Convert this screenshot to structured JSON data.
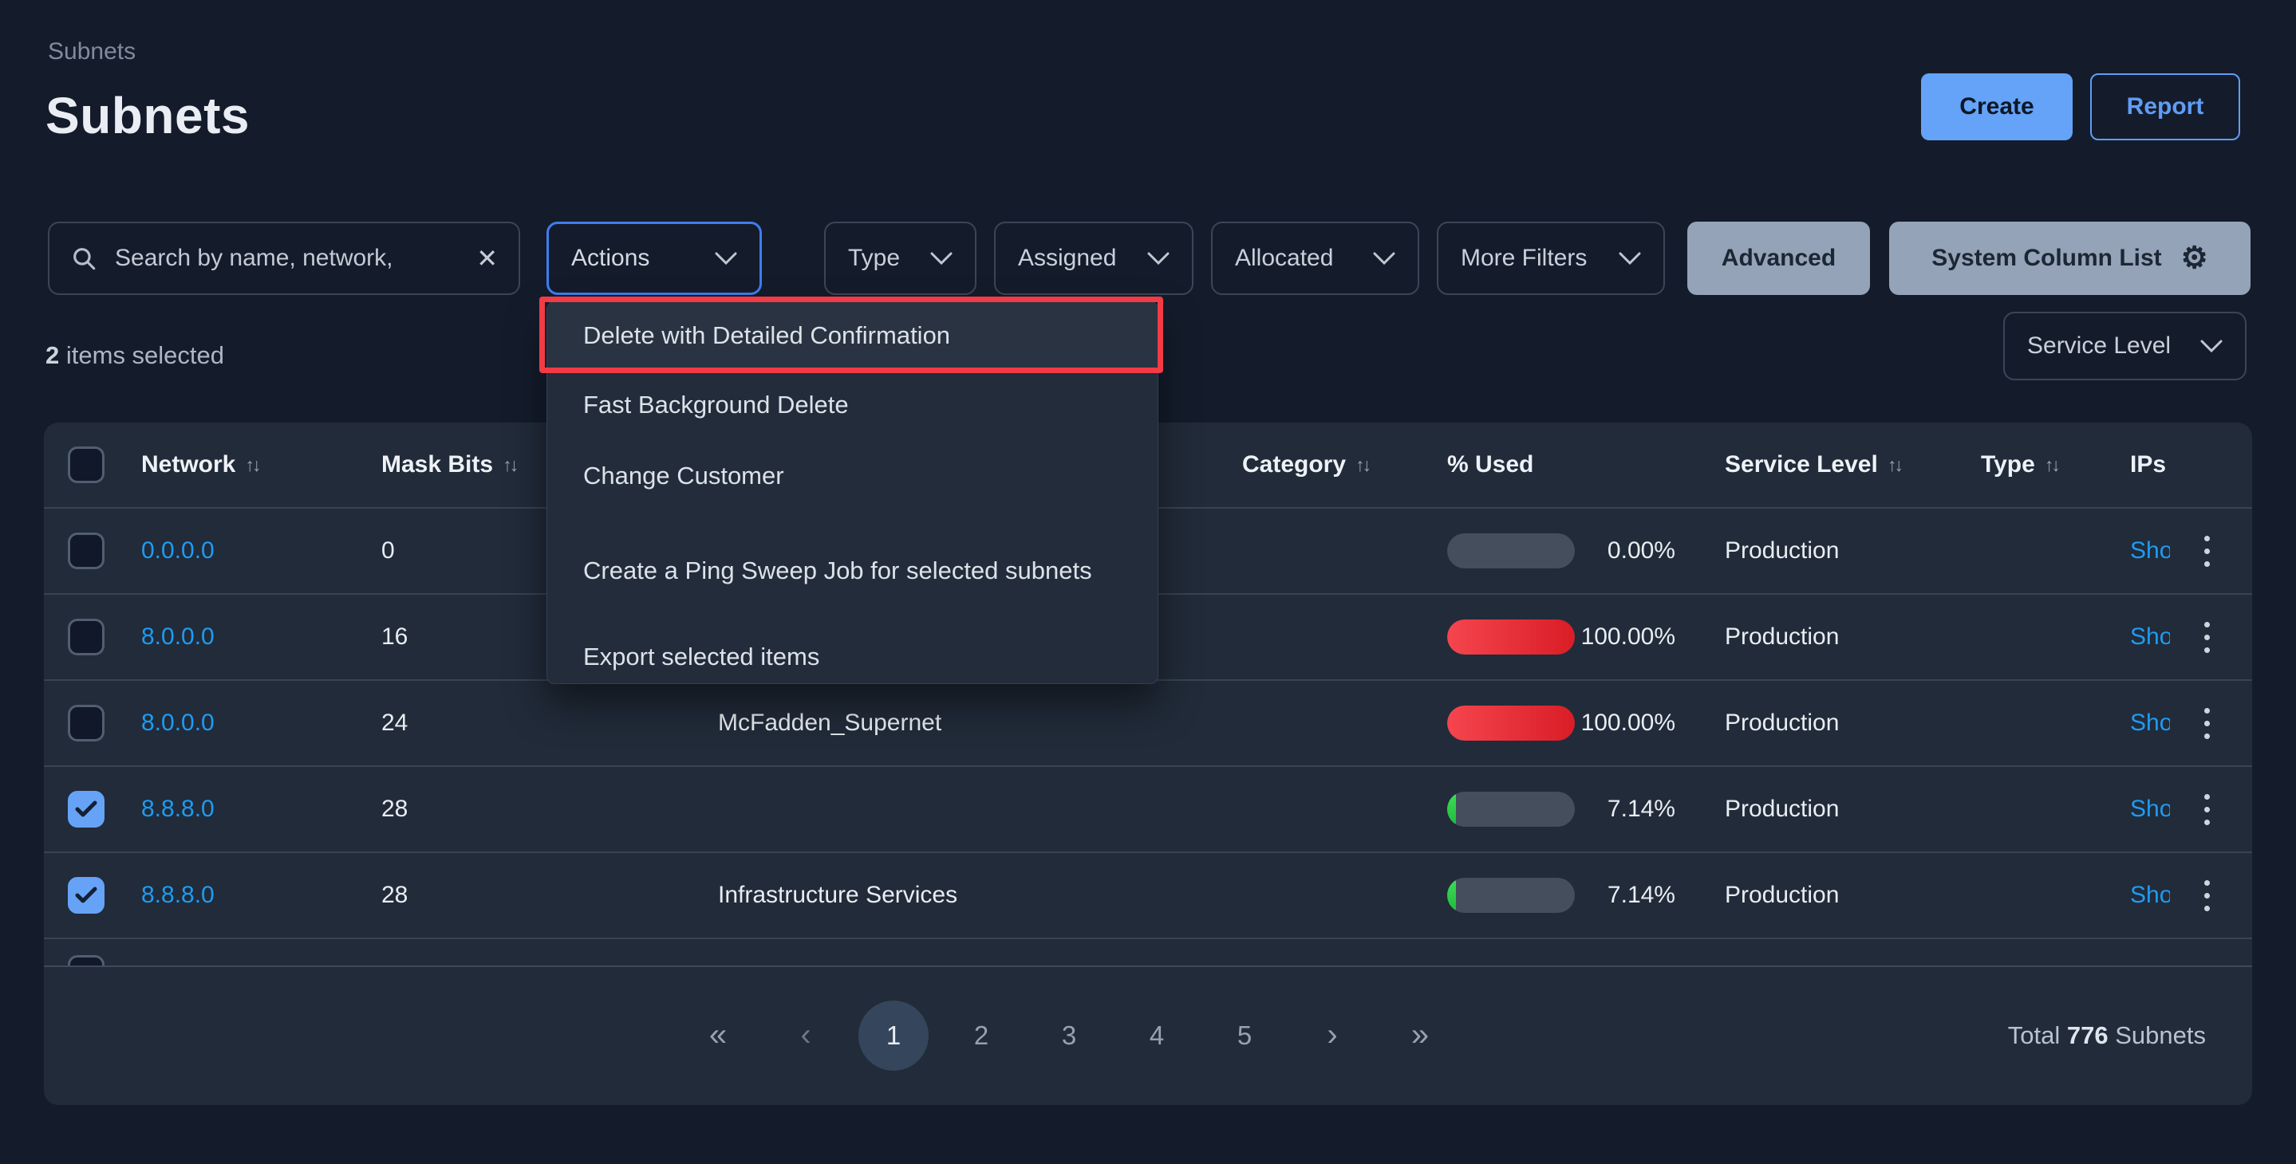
{
  "page": {
    "breadcrumb": "Subnets",
    "title": "Subnets"
  },
  "header_actions": {
    "create": "Create",
    "report": "Report"
  },
  "toolbar": {
    "search_placeholder": "Search by name, network,",
    "actions_label": "Actions",
    "filters": [
      "Type",
      "Assigned",
      "Allocated",
      "More Filters"
    ],
    "advanced_label": "Advanced",
    "system_column_list_label": "System Column List",
    "gear_icon": "⚙",
    "clear_icon": "✕"
  },
  "selection_summary": {
    "count": "2",
    "label": "items selected"
  },
  "service_level_filter_label": "Service Level",
  "actions_menu": {
    "items": [
      "Delete with Detailed Confirmation",
      "Fast Background Delete",
      "Change Customer",
      "Create a Ping Sweep Job for selected subnets",
      "Export selected items"
    ],
    "highlighted_item": "Delete with Detailed Confirmation"
  },
  "table": {
    "columns": {
      "network": "Network",
      "mask_bits": "Mask Bits",
      "category": "Category",
      "used": "% Used",
      "service_level": "Service Level",
      "type": "Type",
      "ips": "IPs"
    },
    "sort_icon": "↑↓",
    "rows": [
      {
        "network": "0.0.0.0",
        "mask_bits": "0",
        "name": "",
        "category": "",
        "used_label": "0.00%",
        "used_percent": 0,
        "used_color": "none",
        "service_level": "Production",
        "type": "",
        "ips_link": "Show",
        "checked": false
      },
      {
        "network": "8.0.0.0",
        "mask_bits": "16",
        "name": "",
        "category": "",
        "used_label": "100.00%",
        "used_percent": 100,
        "used_color": "red",
        "service_level": "Production",
        "type": "",
        "ips_link": "Show",
        "checked": false
      },
      {
        "network": "8.0.0.0",
        "mask_bits": "24",
        "name": "McFadden_Supernet",
        "category": "",
        "used_label": "100.00%",
        "used_percent": 100,
        "used_color": "red",
        "service_level": "Production",
        "type": "",
        "ips_link": "Show",
        "checked": false
      },
      {
        "network": "8.8.8.0",
        "mask_bits": "28",
        "name": "",
        "category": "",
        "used_label": "7.14%",
        "used_percent": 7.14,
        "used_color": "green",
        "service_level": "Production",
        "type": "",
        "ips_link": "Show",
        "checked": true
      },
      {
        "network": "8.8.8.0",
        "mask_bits": "28",
        "name": "Infrastructure Services",
        "category": "",
        "used_label": "7.14%",
        "used_percent": 7.14,
        "used_color": "green",
        "service_level": "Production",
        "type": "",
        "ips_link": "Show",
        "checked": true
      }
    ]
  },
  "pagination": {
    "first": "«",
    "prev": "‹",
    "pages": [
      "1",
      "2",
      "3",
      "4",
      "5"
    ],
    "current": "1",
    "next": "›",
    "last": "»"
  },
  "footer_total": {
    "prefix": "Total",
    "count": "776",
    "suffix": "Subnets"
  },
  "colors": {
    "accent_blue": "#64a3f7",
    "link_blue": "#1e9bf2",
    "annotation_red": "#f23b45",
    "bar_red": "#d91d26",
    "bar_green": "#2ecc4e",
    "panel_bg": "#212b39",
    "page_bg": "#141c2b"
  }
}
